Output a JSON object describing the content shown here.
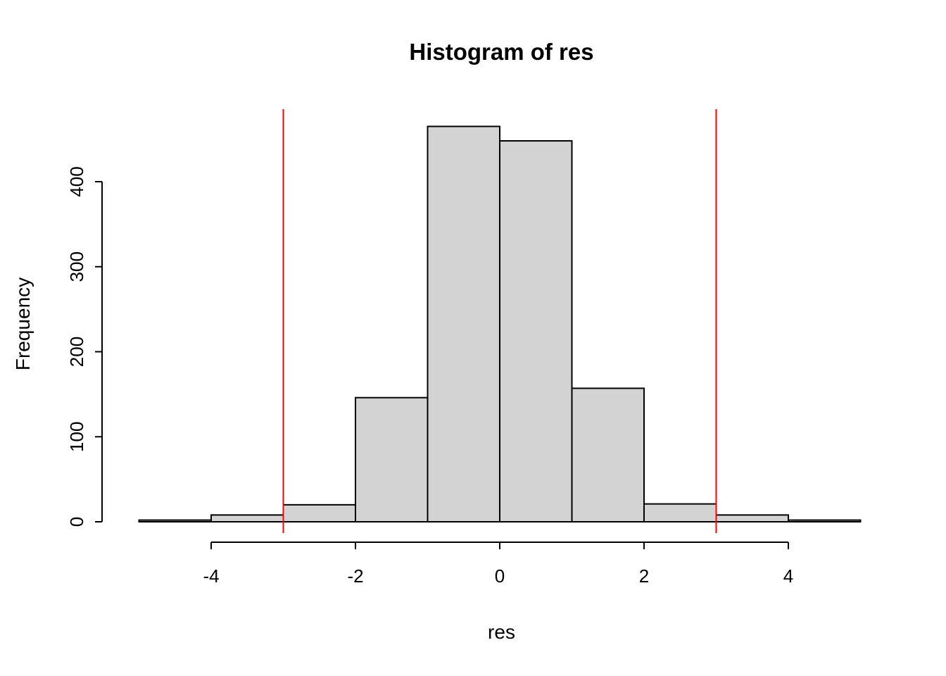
{
  "page": {
    "background": "#FFFFFF"
  },
  "chart_data": {
    "type": "bar",
    "subtype": "histogram",
    "title": "Histogram of res",
    "xlabel": "res",
    "ylabel": "Frequency",
    "breaks": [
      -5,
      -4,
      -3,
      -2,
      -1,
      0,
      1,
      2,
      3,
      4,
      5
    ],
    "counts": [
      2,
      8,
      20,
      146,
      465,
      448,
      157,
      21,
      8,
      2
    ],
    "x_ticks": [
      -4,
      -2,
      0,
      2,
      4
    ],
    "y_ticks": [
      0,
      100,
      200,
      300,
      400
    ],
    "xlim": [
      -5,
      5
    ],
    "ylim": [
      0,
      465
    ],
    "grid": false,
    "legend": "none",
    "bar_fill": "#D3D3D3",
    "bar_stroke": "#000000",
    "axis_color": "#000000",
    "vlines": [
      {
        "x": -3,
        "color": "#FF0000"
      },
      {
        "x": 3,
        "color": "#FF0000"
      }
    ]
  }
}
